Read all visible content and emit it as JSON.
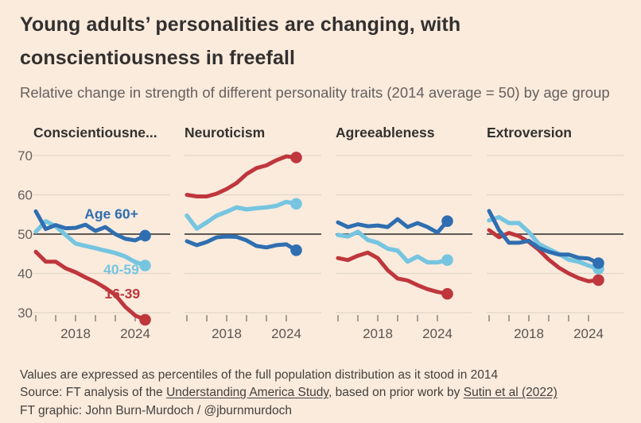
{
  "header": {
    "title": "Young adults’ personalities are changing, with conscientiousness in freefall",
    "subtitle": "Relative change in strength of different personality traits (2014 average = 50) by age group"
  },
  "colors": {
    "background": "#faebdd",
    "title_text": "#33302e",
    "subtitle_text": "#66605c",
    "gridline": "#e2d6c9",
    "baseline": "#5f5853",
    "tick_mark": "#8f8a85",
    "axis_label": "#5b5550",
    "dark_blue": "#2f6eb0",
    "light_blue": "#76c5e0",
    "red": "#bf363d"
  },
  "chart_data": {
    "type": "line",
    "title": "Young adults’ personalities are changing, with conscientiousness in freefall",
    "subtitle": "Relative change in strength of different personality traits (2014 average = 50) by age group",
    "x": [
      2014,
      2015,
      2016,
      2017,
      2018,
      2019,
      2020,
      2021,
      2022,
      2023,
      2024,
      2025
    ],
    "xlim": [
      2014,
      2027.5
    ],
    "ylim": [
      26,
      73
    ],
    "baseline_value": 50,
    "y_gridlines": [
      70,
      60,
      40,
      30
    ],
    "y_axis_labels": [
      70,
      60,
      50,
      40,
      30
    ],
    "x_tick_years": [
      2014,
      2016,
      2018,
      2020,
      2022,
      2024
    ],
    "x_tick_labels": [
      {
        "year": 2018,
        "label": "2018"
      },
      {
        "year": 2024,
        "label": "2024"
      }
    ],
    "series_meta": [
      {
        "id": "age_16_39",
        "name": "16-39",
        "color": "#bf363d"
      },
      {
        "id": "age_40_59",
        "name": "40-59",
        "color": "#76c5e0"
      },
      {
        "id": "age_60_plus",
        "name": "Age 60+",
        "color": "#2f6eb0"
      }
    ],
    "panels": [
      {
        "label": "Conscientiousne...",
        "series": {
          "age_60_plus": [
            55.8,
            51.3,
            52.3,
            51.5,
            51.6,
            52.4,
            50.8,
            51.8,
            50.0,
            48.8,
            48.4,
            49.6
          ],
          "age_40_59": [
            50.6,
            53.3,
            52.0,
            49.8,
            47.6,
            47.0,
            46.4,
            45.8,
            45.2,
            44.3,
            42.9,
            42.0
          ],
          "age_16_39": [
            45.5,
            43.0,
            43.0,
            41.3,
            40.3,
            39.0,
            37.8,
            36.3,
            34.5,
            31.5,
            29.3,
            28.2
          ]
        },
        "annotations": [
          {
            "series": "age_60_plus",
            "label": "Age 60+",
            "x": 2021.6,
            "y": 55.2
          },
          {
            "series": "age_40_59",
            "label": "40-59",
            "x": 2022.6,
            "y": 41.0
          },
          {
            "series": "age_16_39",
            "label": "16-39",
            "x": 2022.7,
            "y": 34.8
          }
        ]
      },
      {
        "label": "Neuroticism",
        "series": {
          "age_60_plus": [
            48.2,
            47.2,
            48.0,
            49.2,
            49.4,
            49.3,
            48.4,
            47.0,
            46.6,
            47.2,
            47.4,
            45.9
          ],
          "age_40_59": [
            54.7,
            51.4,
            53.0,
            54.7,
            55.7,
            56.8,
            56.3,
            56.6,
            56.8,
            57.2,
            58.2,
            57.7
          ],
          "age_16_39": [
            60.0,
            59.6,
            59.6,
            60.3,
            61.5,
            63.0,
            65.3,
            66.8,
            67.5,
            68.8,
            69.8,
            69.5
          ]
        },
        "annotations": []
      },
      {
        "label": "Agreeableness",
        "series": {
          "age_60_plus": [
            53.0,
            51.8,
            52.5,
            52.0,
            52.2,
            51.8,
            53.8,
            51.8,
            52.8,
            51.8,
            50.4,
            53.3
          ],
          "age_40_59": [
            49.8,
            49.4,
            50.6,
            48.5,
            47.8,
            46.3,
            45.8,
            43.0,
            44.3,
            42.8,
            42.8,
            43.4
          ],
          "age_16_39": [
            43.9,
            43.4,
            44.5,
            45.3,
            43.9,
            40.8,
            38.7,
            38.2,
            37.0,
            36.0,
            35.3,
            34.8
          ]
        },
        "annotations": []
      },
      {
        "label": "Extroversion",
        "series": {
          "age_60_plus": [
            55.9,
            51.0,
            47.8,
            47.8,
            48.3,
            46.5,
            45.5,
            44.8,
            44.8,
            44.0,
            43.8,
            42.6
          ],
          "age_40_59": [
            53.5,
            54.3,
            52.8,
            52.8,
            50.5,
            47.5,
            46.2,
            45.0,
            43.5,
            43.0,
            42.0,
            41.2
          ],
          "age_16_39": [
            51.0,
            49.2,
            50.3,
            49.5,
            48.0,
            46.0,
            43.5,
            41.5,
            40.0,
            38.8,
            38.0,
            38.3
          ]
        },
        "annotations": []
      }
    ]
  },
  "footer": {
    "note": "Values are expressed as percentiles of the full population distribution as it stood in 2014",
    "source_prefix": "Source: FT analysis of the ",
    "source_link_1": "Understanding America Study",
    "source_middle": ", based on prior work by ",
    "source_link_2": "Sutin et al (2022)",
    "credit": "FT graphic: John Burn-Murdoch / @jburnmurdoch"
  }
}
